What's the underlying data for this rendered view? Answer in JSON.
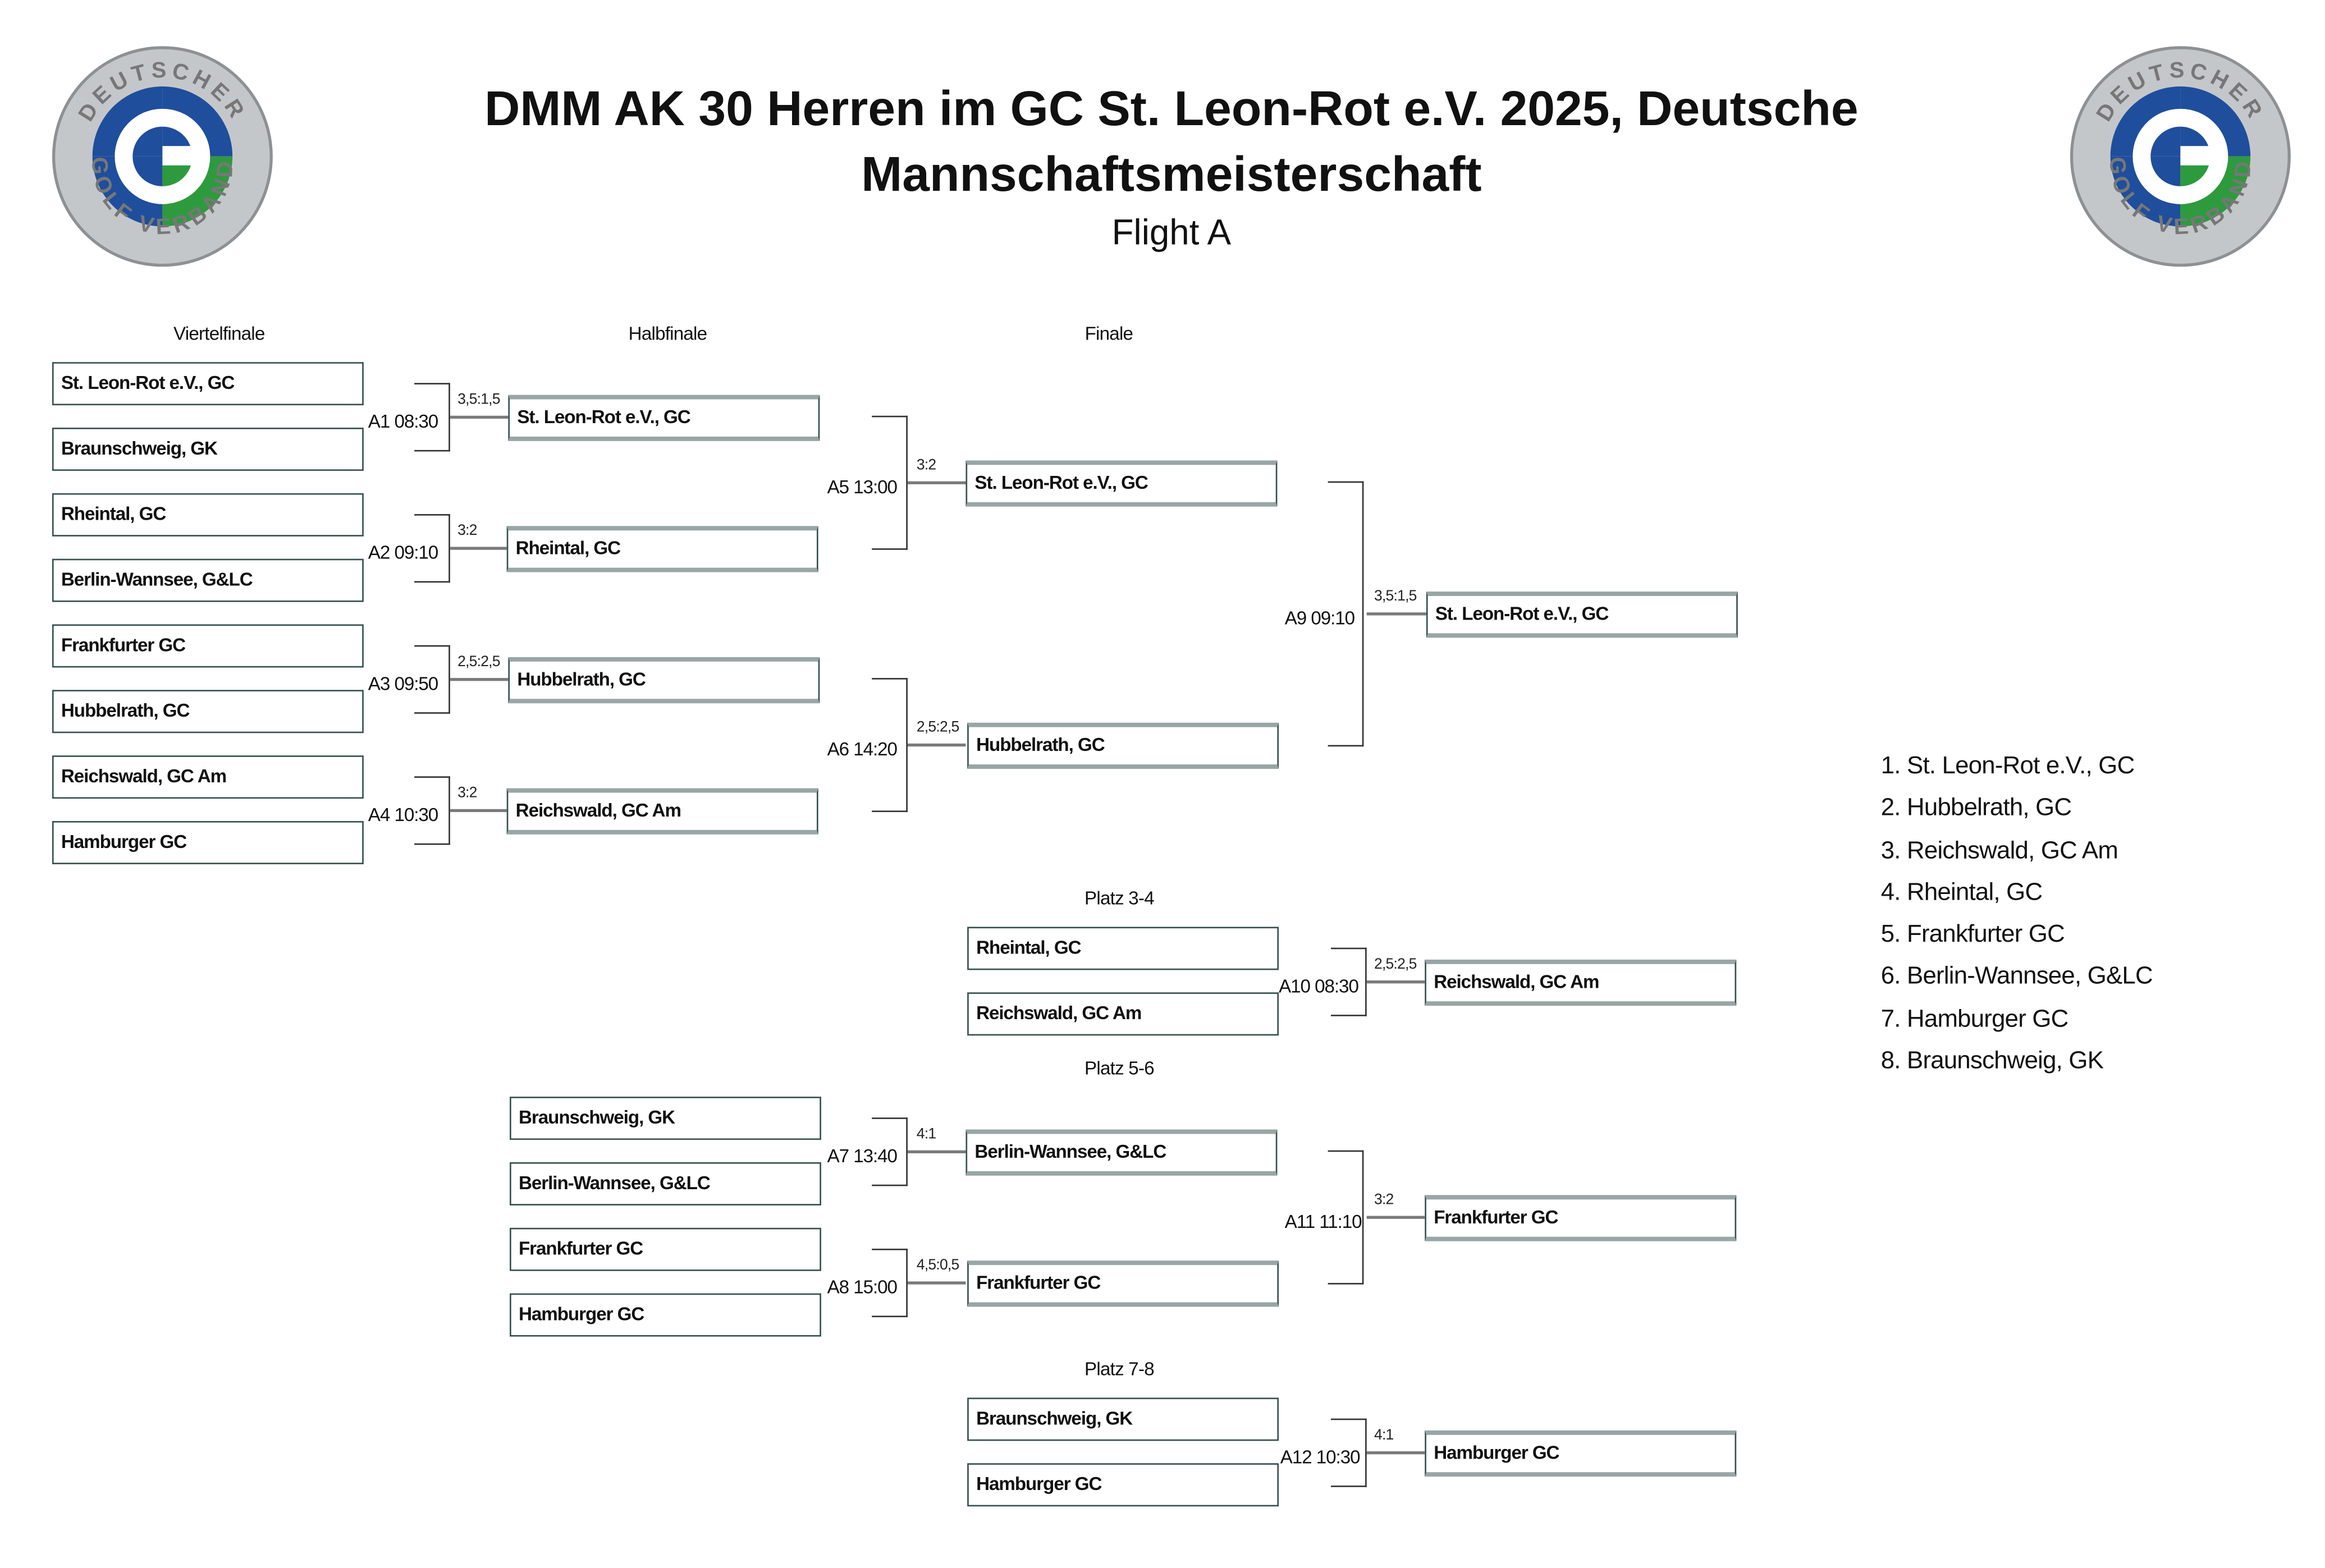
{
  "header": {
    "title_line1": "DMM AK 30 Herren im GC St. Leon-Rot e.V. 2025, Deutsche",
    "title_line2": "Mannschaftsmeisterschaft",
    "subtitle": "Flight A",
    "logo_text_top": "DEUTSCHER",
    "logo_text_bottom": "GOLF VERBAND",
    "logo_colors": {
      "blue": "#1f4e9c",
      "green": "#2e9a3e",
      "silver": "#b9bcbf"
    }
  },
  "rounds": {
    "quarterfinal": "Viertelfinale",
    "semifinal": "Halbfinale",
    "final": "Finale",
    "place34": "Platz 3-4",
    "place56": "Platz 5-6",
    "place78": "Platz 7-8"
  },
  "quarterfinal_teams": [
    "St. Leon-Rot e.V., GC",
    "Braunschweig, GK",
    "Rheintal, GC",
    "Berlin-Wannsee, G&LC",
    "Frankfurter GC",
    "Hubbelrath, GC",
    "Reichswald, GC Am",
    "Hamburger GC"
  ],
  "semifinal_teams": [
    "St. Leon-Rot e.V., GC",
    "Rheintal, GC",
    "Hubbelrath, GC",
    "Reichswald, GC Am"
  ],
  "final_teams": [
    "St. Leon-Rot e.V., GC",
    "Hubbelrath, GC"
  ],
  "champion": "St. Leon-Rot e.V., GC",
  "place34_teams": [
    "Rheintal, GC",
    "Reichswald, GC Am"
  ],
  "place34_winner": "Reichswald, GC Am",
  "place58_teams": [
    "Braunschweig, GK",
    "Berlin-Wannsee, G&LC",
    "Frankfurter GC",
    "Hamburger GC"
  ],
  "place56_teams": [
    "Berlin-Wannsee, G&LC",
    "Frankfurter GC"
  ],
  "place56_winner": "Frankfurter GC",
  "place78_teams": [
    "Braunschweig, GK",
    "Hamburger GC"
  ],
  "place78_winner": "Hamburger GC",
  "matches": {
    "A1": {
      "label": "A1 08:30",
      "score": "3,5:1,5"
    },
    "A2": {
      "label": "A2 09:10",
      "score": "3:2"
    },
    "A3": {
      "label": "A3 09:50",
      "score": "2,5:2,5"
    },
    "A4": {
      "label": "A4 10:30",
      "score": "3:2"
    },
    "A5": {
      "label": "A5 13:00",
      "score": "3:2"
    },
    "A6": {
      "label": "A6 14:20",
      "score": "2,5:2,5"
    },
    "A7": {
      "label": "A7 13:40",
      "score": "4:1"
    },
    "A8": {
      "label": "A8 15:00",
      "score": "4,5:0,5"
    },
    "A9": {
      "label": "A9 09:10",
      "score": "3,5:1,5"
    },
    "A10": {
      "label": "A10 08:30",
      "score": "2,5:2,5"
    },
    "A11": {
      "label": "A11 11:10",
      "score": "3:2"
    },
    "A12": {
      "label": "A12 10:30",
      "score": "4:1"
    }
  },
  "final_ranking": [
    "1. St. Leon-Rot e.V., GC",
    "2. Hubbelrath, GC",
    "3. Reichswald, GC Am",
    "4. Rheintal, GC",
    "5. Frankfurter GC",
    "6. Berlin-Wannsee, G&LC",
    "7. Hamburger GC",
    "8. Braunschweig, GK"
  ]
}
